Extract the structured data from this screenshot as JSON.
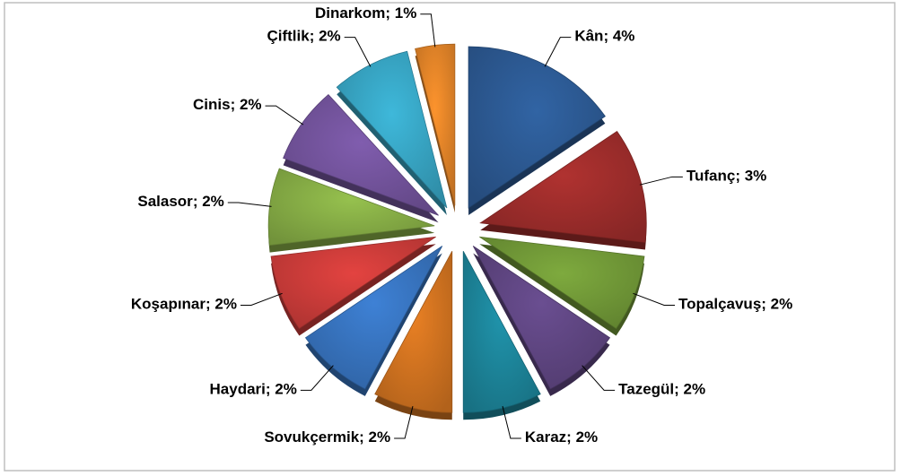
{
  "chart_data": {
    "type": "pie",
    "categories": [
      "Kân",
      "Tufanç",
      "Topalçavuş",
      "Tazegül",
      "Karaz",
      "Sovukçermik",
      "Haydari",
      "Koşapınar",
      "Salasor",
      "Cinis",
      "Çiftlik",
      "Dinarkom"
    ],
    "values": [
      4,
      3,
      2,
      2,
      2,
      2,
      2,
      2,
      2,
      2,
      2,
      1
    ],
    "value_labels": [
      "4%",
      "3%",
      "2%",
      "2%",
      "2%",
      "2%",
      "2%",
      "2%",
      "2%",
      "2%",
      "2%",
      "1%"
    ],
    "label_separator": "; ",
    "colors": [
      "#2f5f9c",
      "#a8302e",
      "#78a23b",
      "#654a8a",
      "#1e8da4",
      "#de7a22",
      "#3b7bcb",
      "#d8403d",
      "#8fb84a",
      "#7a59a6",
      "#3bafd0",
      "#f08c2b"
    ]
  }
}
